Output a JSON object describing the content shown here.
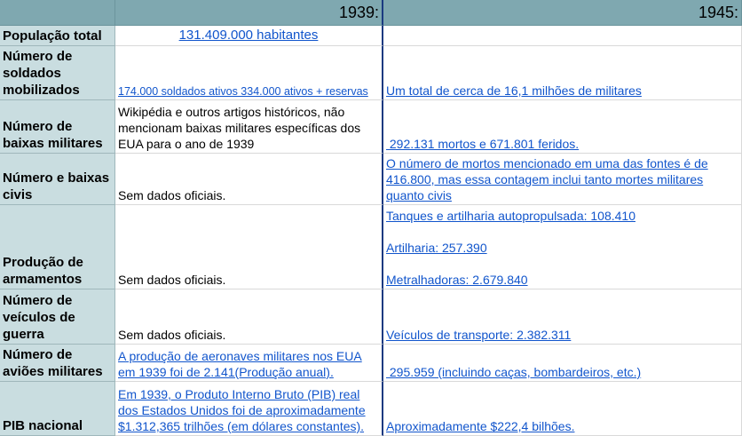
{
  "header": {
    "year1": "1939:",
    "year2": "1945:"
  },
  "rows": [
    {
      "label": "População total",
      "c1939": "131.409.000 habitantes",
      "c1945": ""
    },
    {
      "label": "Número de soldados mobilizados",
      "c1939": "174.000 soldados ativos 334.000 ativos + reservas",
      "c1945": "Um total de cerca de 16,1 milhões de militares"
    },
    {
      "label": "Número de baixas militares",
      "c1939": "Wikipédia e outros artigos históricos, não mencionam baixas militares específicas dos EUA para o ano de 1939",
      "c1945": " 292.131 mortos e 671.801 feridos."
    },
    {
      "label": "Número e baixas civis",
      "c1939": "Sem dados oficiais.",
      "c1945": " O número de mortos mencionado em uma das fontes é de 416.800, mas essa contagem inclui tanto mortes militares quanto civis"
    },
    {
      "label": "Produção de armamentos",
      "c1939": "Sem dados oficiais.",
      "c1945_lines": [
        "Tanques e artilharia autopropulsada: 108.410",
        "Artilharia: 257.390",
        "Metralhadoras: 2.679.840"
      ]
    },
    {
      "label": "Número de veículos de guerra",
      "c1939": "Sem dados oficiais.",
      "c1945": "Veículos de transporte: 2.382.311"
    },
    {
      "label": "Número de aviões militares",
      "c1939": "A produção de aeronaves militares nos EUA em 1939 foi de 2.141(Produção anual).",
      "c1945": " 295.959 (incluindo caças, bombardeiros, etc.)"
    },
    {
      "label": "PIB nacional",
      "c1939": "Em 1939, o Produto Interno Bruto (PIB) real dos Estados Unidos foi de aproximadamente $1.312,365 trilhões (em dólares constantes).",
      "c1945": "Aproximadamente $222,4 bilhões."
    }
  ]
}
